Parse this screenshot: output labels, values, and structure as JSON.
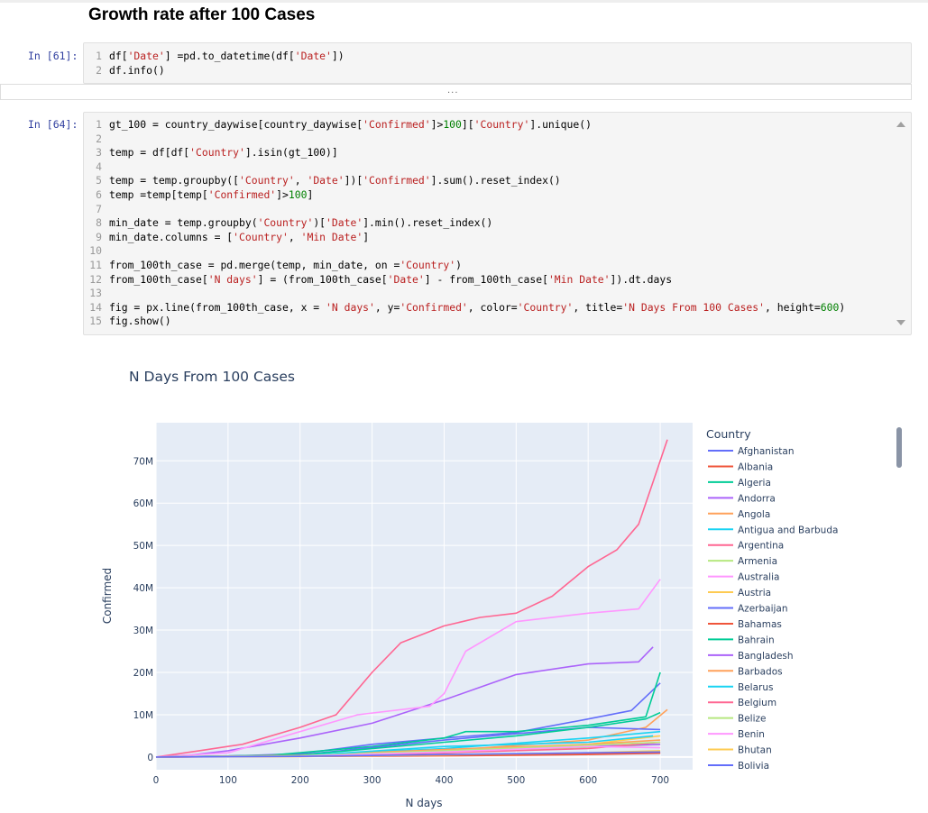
{
  "markdown": {
    "heading": "Growth rate after 100 Cases"
  },
  "cells": [
    {
      "prompt": "In [61]:",
      "lines": [
        {
          "n": "1",
          "parts": [
            [
              "df[",
              ""
            ],
            [
              "'Date'",
              "s"
            ],
            [
              "] =pd.to_datetime(df[",
              ""
            ],
            [
              "'Date'",
              "s"
            ],
            [
              "])",
              ""
            ]
          ]
        },
        {
          "n": "2",
          "parts": [
            [
              "df.info()",
              ""
            ]
          ]
        }
      ]
    },
    {
      "prompt": "In [64]:",
      "lines": [
        {
          "n": "1",
          "parts": [
            [
              "gt_100 = country_daywise[country_daywise[",
              ""
            ],
            [
              "'Confirmed'",
              "s"
            ],
            [
              "]>",
              ""
            ],
            [
              "100",
              "n"
            ],
            [
              "][",
              ""
            ],
            [
              "'Country'",
              "s"
            ],
            [
              "].unique()",
              ""
            ]
          ]
        },
        {
          "n": "2",
          "parts": []
        },
        {
          "n": "3",
          "parts": [
            [
              "temp = df[df[",
              ""
            ],
            [
              "'Country'",
              "s"
            ],
            [
              "].isin(gt_100)]",
              ""
            ]
          ]
        },
        {
          "n": "4",
          "parts": []
        },
        {
          "n": "5",
          "parts": [
            [
              "temp = temp.groupby([",
              ""
            ],
            [
              "'Country'",
              "s"
            ],
            [
              ", ",
              ""
            ],
            [
              "'Date'",
              "s"
            ],
            [
              "])[",
              ""
            ],
            [
              "'Confirmed'",
              "s"
            ],
            [
              "].sum().reset_index()",
              ""
            ]
          ]
        },
        {
          "n": "6",
          "parts": [
            [
              "temp =temp[temp[",
              ""
            ],
            [
              "'Confirmed'",
              "s"
            ],
            [
              "]>",
              ""
            ],
            [
              "100",
              "n"
            ],
            [
              "]",
              ""
            ]
          ]
        },
        {
          "n": "7",
          "parts": []
        },
        {
          "n": "8",
          "parts": [
            [
              "min_date = temp.groupby(",
              ""
            ],
            [
              "'Country'",
              "s"
            ],
            [
              ")[",
              ""
            ],
            [
              "'Date'",
              "s"
            ],
            [
              "].min().reset_index()",
              ""
            ]
          ]
        },
        {
          "n": "9",
          "parts": [
            [
              "min_date.columns = [",
              ""
            ],
            [
              "'Country'",
              "s"
            ],
            [
              ", ",
              ""
            ],
            [
              "'Min Date'",
              "s"
            ],
            [
              "]",
              ""
            ]
          ]
        },
        {
          "n": "10",
          "parts": []
        },
        {
          "n": "11",
          "parts": [
            [
              "from_100th_case = pd.merge(temp, min_date, on =",
              ""
            ],
            [
              "'Country'",
              "s"
            ],
            [
              ")",
              ""
            ]
          ]
        },
        {
          "n": "12",
          "parts": [
            [
              "from_100th_case[",
              ""
            ],
            [
              "'N days'",
              "s"
            ],
            [
              "] = (from_100th_case[",
              ""
            ],
            [
              "'Date'",
              "s"
            ],
            [
              "] - from_100th_case[",
              ""
            ],
            [
              "'Min Date'",
              "s"
            ],
            [
              "]).dt.days",
              ""
            ]
          ]
        },
        {
          "n": "13",
          "parts": []
        },
        {
          "n": "14",
          "parts": [
            [
              "fig = px.line(from_100th_case, x = ",
              ""
            ],
            [
              "'N days'",
              "s"
            ],
            [
              ", y=",
              ""
            ],
            [
              "'Confirmed'",
              "s"
            ],
            [
              ", color=",
              ""
            ],
            [
              "'Country'",
              "s"
            ],
            [
              ", title=",
              ""
            ],
            [
              "'N Days From 100 Cases'",
              "s"
            ],
            [
              ", height=",
              ""
            ],
            [
              "600",
              "n"
            ],
            [
              ")",
              ""
            ]
          ]
        },
        {
          "n": "15",
          "parts": [
            [
              "fig.show()",
              ""
            ]
          ]
        }
      ]
    }
  ],
  "collapsed_output": {
    "label": "..."
  },
  "chart_data": {
    "type": "line",
    "title": "N Days From 100 Cases",
    "xlabel": "N days",
    "ylabel": "Confirmed",
    "xlim": [
      0,
      745
    ],
    "ylim": [
      -3000000,
      79000000
    ],
    "xticks": [
      0,
      100,
      200,
      300,
      400,
      500,
      600,
      700
    ],
    "yticks": [
      0,
      10000000,
      20000000,
      30000000,
      40000000,
      50000000,
      60000000,
      70000000
    ],
    "ytick_labels": [
      "0",
      "10M",
      "20M",
      "30M",
      "40M",
      "50M",
      "60M",
      "70M"
    ],
    "legend_title": "Country",
    "legend_position": "right",
    "series": [
      {
        "name": "Afghanistan",
        "color": "#636efa",
        "points": [
          [
            0,
            0
          ],
          [
            100,
            200000
          ],
          [
            200,
            800000
          ],
          [
            300,
            3000000
          ],
          [
            400,
            4500000
          ],
          [
            500,
            5800000
          ],
          [
            600,
            9000000
          ],
          [
            660,
            11000000
          ],
          [
            700,
            17500000
          ]
        ]
      },
      {
        "name": "Albania",
        "color": "#ef553b",
        "points": [
          [
            0,
            0
          ],
          [
            200,
            200000
          ],
          [
            400,
            600000
          ],
          [
            600,
            800000
          ],
          [
            700,
            1000000
          ]
        ]
      },
      {
        "name": "Algeria",
        "color": "#00cc96",
        "points": [
          [
            0,
            0
          ],
          [
            150,
            300000
          ],
          [
            300,
            2500000
          ],
          [
            400,
            4500000
          ],
          [
            430,
            6000000
          ],
          [
            500,
            6000000
          ],
          [
            600,
            7500000
          ],
          [
            680,
            9500000
          ],
          [
            700,
            20000000
          ]
        ]
      },
      {
        "name": "Andorra",
        "color": "#ab63fa",
        "points": [
          [
            0,
            0
          ],
          [
            50,
            500000
          ],
          [
            100,
            1500000
          ],
          [
            200,
            4500000
          ],
          [
            300,
            8000000
          ],
          [
            400,
            13500000
          ],
          [
            500,
            19500000
          ],
          [
            600,
            22000000
          ],
          [
            670,
            22500000
          ],
          [
            690,
            26000000
          ]
        ]
      },
      {
        "name": "Angola",
        "color": "#ffa15a",
        "points": [
          [
            0,
            0
          ],
          [
            200,
            300000
          ],
          [
            400,
            1500000
          ],
          [
            600,
            4000000
          ],
          [
            680,
            7000000
          ],
          [
            710,
            11200000
          ]
        ]
      },
      {
        "name": "Antigua and Barbuda",
        "color": "#19d3f3",
        "points": [
          [
            0,
            0
          ],
          [
            200,
            400000
          ],
          [
            400,
            2000000
          ],
          [
            600,
            4500000
          ],
          [
            700,
            6000000
          ]
        ]
      },
      {
        "name": "Argentina",
        "color": "#ff6692",
        "points": [
          [
            0,
            0
          ],
          [
            60,
            1500000
          ],
          [
            120,
            3000000
          ],
          [
            200,
            7000000
          ],
          [
            250,
            10000000
          ],
          [
            300,
            20000000
          ],
          [
            340,
            27000000
          ],
          [
            400,
            31000000
          ],
          [
            450,
            33000000
          ],
          [
            500,
            34000000
          ],
          [
            550,
            38000000
          ],
          [
            600,
            45000000
          ],
          [
            640,
            49000000
          ],
          [
            670,
            55000000
          ],
          [
            690,
            65000000
          ],
          [
            710,
            75000000
          ]
        ]
      },
      {
        "name": "Armenia",
        "color": "#b6e880",
        "points": [
          [
            0,
            0
          ],
          [
            200,
            300000
          ],
          [
            400,
            1200000
          ],
          [
            600,
            2200000
          ],
          [
            700,
            3000000
          ]
        ]
      },
      {
        "name": "Australia",
        "color": "#ff97ff",
        "points": [
          [
            0,
            0
          ],
          [
            100,
            1000000
          ],
          [
            200,
            6000000
          ],
          [
            280,
            10000000
          ],
          [
            380,
            12000000
          ],
          [
            400,
            15000000
          ],
          [
            430,
            25000000
          ],
          [
            500,
            32000000
          ],
          [
            600,
            34000000
          ],
          [
            670,
            35000000
          ],
          [
            700,
            42000000
          ]
        ]
      },
      {
        "name": "Austria",
        "color": "#fecb52",
        "points": [
          [
            0,
            0
          ],
          [
            200,
            300000
          ],
          [
            400,
            1500000
          ],
          [
            600,
            3000000
          ],
          [
            700,
            5000000
          ]
        ]
      },
      {
        "name": "Azerbaijan",
        "color": "#636efa",
        "points": [
          [
            0,
            0
          ],
          [
            200,
            500000
          ],
          [
            400,
            4000000
          ],
          [
            500,
            5500000
          ],
          [
            600,
            7000000
          ],
          [
            700,
            6500000
          ]
        ]
      },
      {
        "name": "Bahamas",
        "color": "#ef553b",
        "points": [
          [
            0,
            0
          ],
          [
            300,
            200000
          ],
          [
            500,
            400000
          ],
          [
            600,
            600000
          ],
          [
            700,
            900000
          ]
        ]
      },
      {
        "name": "Bahrain",
        "color": "#00cc96",
        "points": [
          [
            0,
            0
          ],
          [
            200,
            500000
          ],
          [
            400,
            3500000
          ],
          [
            500,
            5000000
          ],
          [
            600,
            7000000
          ],
          [
            680,
            9000000
          ],
          [
            700,
            10500000
          ]
        ]
      },
      {
        "name": "Bangladesh",
        "color": "#ab63fa",
        "points": [
          [
            0,
            0
          ],
          [
            200,
            300000
          ],
          [
            400,
            1500000
          ],
          [
            600,
            2500000
          ],
          [
            700,
            3000000
          ]
        ]
      },
      {
        "name": "Barbados",
        "color": "#ffa15a",
        "points": [
          [
            0,
            0
          ],
          [
            200,
            400000
          ],
          [
            400,
            1800000
          ],
          [
            600,
            3000000
          ],
          [
            700,
            4000000
          ]
        ]
      },
      {
        "name": "Belarus",
        "color": "#19d3f3",
        "points": [
          [
            0,
            0
          ],
          [
            200,
            300000
          ],
          [
            400,
            2500000
          ],
          [
            600,
            3500000
          ],
          [
            690,
            5000000
          ]
        ]
      },
      {
        "name": "Belgium",
        "color": "#ff6692",
        "points": [
          [
            0,
            0
          ],
          [
            200,
            200000
          ],
          [
            400,
            1000000
          ],
          [
            600,
            2000000
          ],
          [
            700,
            3500000
          ]
        ]
      },
      {
        "name": "Belize",
        "color": "#b6e880",
        "points": [
          [
            0,
            0
          ],
          [
            200,
            300000
          ],
          [
            400,
            1500000
          ],
          [
            600,
            2800000
          ],
          [
            700,
            3500000
          ]
        ]
      },
      {
        "name": "Benin",
        "color": "#ff97ff",
        "points": [
          [
            0,
            0
          ],
          [
            200,
            200000
          ],
          [
            400,
            1200000
          ],
          [
            600,
            2500000
          ],
          [
            700,
            2200000
          ]
        ]
      },
      {
        "name": "Bhutan",
        "color": "#fecb52",
        "points": [
          [
            0,
            0
          ],
          [
            200,
            100000
          ],
          [
            400,
            500000
          ],
          [
            600,
            1000000
          ],
          [
            700,
            1500000
          ]
        ]
      },
      {
        "name": "Bolivia",
        "color": "#636efa",
        "points": [
          [
            0,
            0
          ],
          [
            200,
            150000
          ],
          [
            400,
            600000
          ],
          [
            600,
            1000000
          ],
          [
            700,
            1200000
          ]
        ]
      }
    ]
  }
}
